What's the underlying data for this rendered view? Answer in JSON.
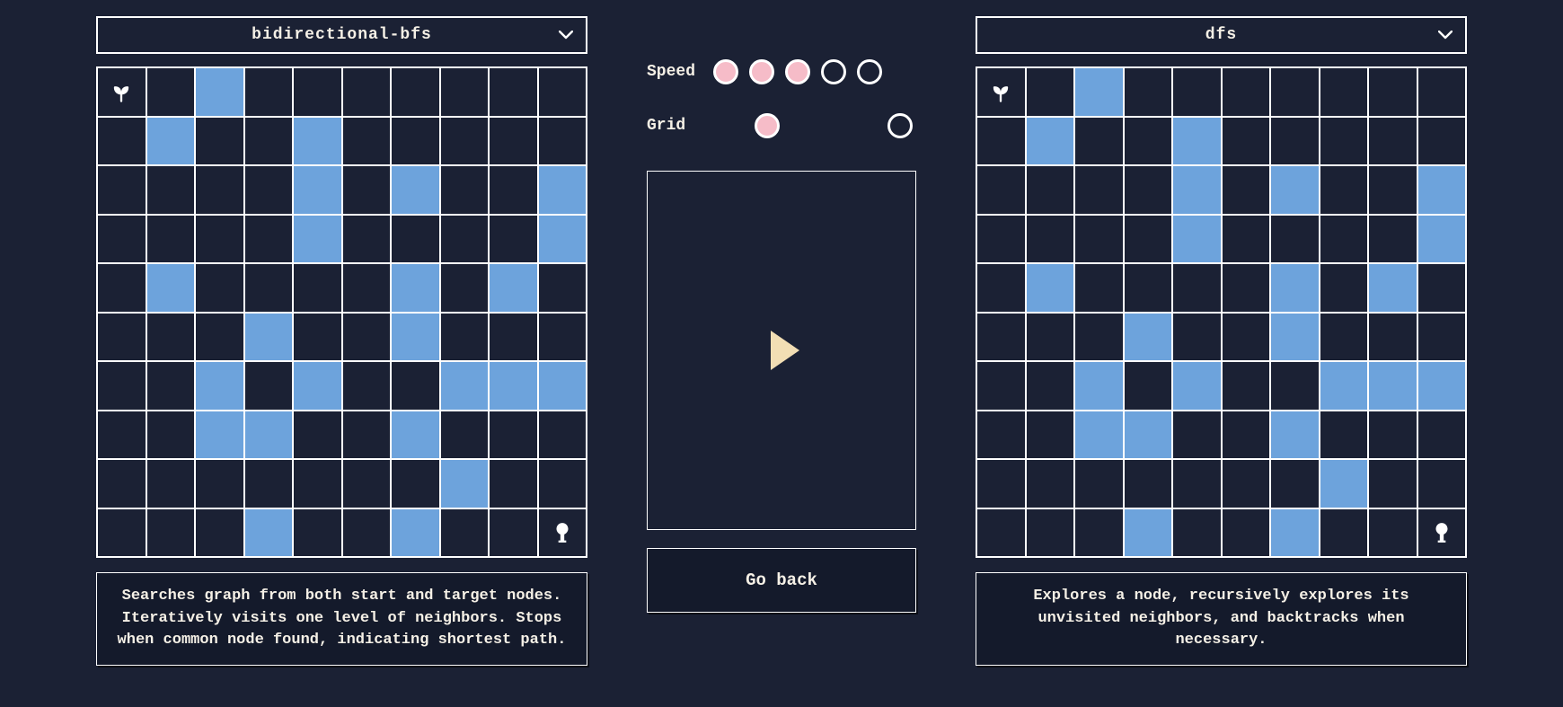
{
  "colors": {
    "bg": "#1b2134",
    "panel_bg": "#141a2b",
    "wall": "#6da3dc",
    "border": "#ffffff",
    "dot_fill": "#f6bcc8",
    "play_tri": "#f2deb4",
    "text": "#f5f0e6"
  },
  "left": {
    "algorithm": "bidirectional-bfs",
    "description": "Searches graph from both start and target nodes. Iteratively visits one level of neighbors. Stops when common node found, indicating shortest path.",
    "grid": {
      "rows": 10,
      "cols": 10,
      "start": [
        0,
        0
      ],
      "goal": [
        9,
        9
      ],
      "walls": [
        [
          0,
          2
        ],
        [
          1,
          1
        ],
        [
          1,
          4
        ],
        [
          2,
          4
        ],
        [
          2,
          6
        ],
        [
          2,
          9
        ],
        [
          3,
          4
        ],
        [
          3,
          9
        ],
        [
          4,
          1
        ],
        [
          4,
          6
        ],
        [
          4,
          8
        ],
        [
          5,
          3
        ],
        [
          5,
          6
        ],
        [
          6,
          2
        ],
        [
          6,
          4
        ],
        [
          6,
          7
        ],
        [
          6,
          8
        ],
        [
          6,
          9
        ],
        [
          7,
          2
        ],
        [
          7,
          3
        ],
        [
          7,
          6
        ],
        [
          8,
          7
        ],
        [
          9,
          3
        ],
        [
          9,
          6
        ]
      ]
    }
  },
  "right": {
    "algorithm": "dfs",
    "description": "Explores a node, recursively explores its unvisited neighbors, and backtracks when necessary.",
    "grid": {
      "rows": 10,
      "cols": 10,
      "start": [
        0,
        0
      ],
      "goal": [
        9,
        9
      ],
      "walls": [
        [
          0,
          2
        ],
        [
          1,
          1
        ],
        [
          1,
          4
        ],
        [
          2,
          4
        ],
        [
          2,
          6
        ],
        [
          2,
          9
        ],
        [
          3,
          4
        ],
        [
          3,
          9
        ],
        [
          4,
          1
        ],
        [
          4,
          6
        ],
        [
          4,
          8
        ],
        [
          5,
          3
        ],
        [
          5,
          6
        ],
        [
          6,
          2
        ],
        [
          6,
          4
        ],
        [
          6,
          7
        ],
        [
          6,
          8
        ],
        [
          6,
          9
        ],
        [
          7,
          2
        ],
        [
          7,
          3
        ],
        [
          7,
          6
        ],
        [
          8,
          7
        ],
        [
          9,
          3
        ],
        [
          9,
          6
        ]
      ]
    }
  },
  "controls": {
    "speed_label": "Speed",
    "speed_total": 5,
    "speed_value": 3,
    "grid_label": "Grid",
    "grid_options": 2,
    "grid_selected": 0,
    "go_back_label": "Go back"
  }
}
